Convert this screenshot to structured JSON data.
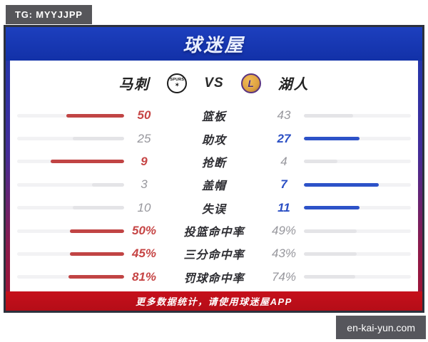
{
  "badges": {
    "top_left": {
      "label": "TG: MYYJJPP"
    },
    "bottom_right": {
      "label": "en-kai-yun.com"
    }
  },
  "header": {
    "title": "球迷屋"
  },
  "match": {
    "home_team": {
      "name": "马刺",
      "logo": "spurs-logo",
      "logo_text": "SPURS",
      "logo_mark": "✶"
    },
    "vs_label": "VS",
    "away_team": {
      "name": "湖人",
      "logo": "lakers-logo",
      "logo_mark": "L"
    }
  },
  "stats": {
    "rows": [
      {
        "label": "篮板",
        "left": "50",
        "right": "43",
        "left_pct": 54,
        "right_pct": 46,
        "left_highlight": true,
        "right_highlight": false
      },
      {
        "label": "助攻",
        "left": "25",
        "right": "27",
        "left_pct": 48,
        "right_pct": 52,
        "left_highlight": false,
        "right_highlight": true
      },
      {
        "label": "抢断",
        "left": "9",
        "right": "4",
        "left_pct": 69,
        "right_pct": 31,
        "left_highlight": true,
        "right_highlight": false
      },
      {
        "label": "盖帽",
        "left": "3",
        "right": "7",
        "left_pct": 30,
        "right_pct": 70,
        "left_highlight": false,
        "right_highlight": true
      },
      {
        "label": "失误",
        "left": "10",
        "right": "11",
        "left_pct": 48,
        "right_pct": 52,
        "left_highlight": false,
        "right_highlight": true
      },
      {
        "label": "投篮命中率",
        "left": "50%",
        "right": "49%",
        "left_pct": 51,
        "right_pct": 49,
        "left_highlight": true,
        "right_highlight": false
      },
      {
        "label": "三分命中率",
        "left": "45%",
        "right": "43%",
        "left_pct": 51,
        "right_pct": 49,
        "left_highlight": true,
        "right_highlight": false
      },
      {
        "label": "罚球命中率",
        "left": "81%",
        "right": "74%",
        "left_pct": 52,
        "right_pct": 48,
        "left_highlight": true,
        "right_highlight": false
      }
    ]
  },
  "footer": {
    "text": "更多数据统计，请使用球迷屋APP"
  },
  "colors": {
    "header_blue": "#1737b4",
    "banner_red": "#c1101c",
    "home_accent": "#c14444",
    "away_accent": "#2d52c8",
    "track_gray": "#f2f2f4",
    "muted_fill": "#e4e4e7",
    "badge_gray": "#56565a"
  },
  "chart_data": {
    "type": "bar",
    "title": "马刺 VS 湖人 数据统计",
    "categories": [
      "篮板",
      "助攻",
      "抢断",
      "盖帽",
      "失误",
      "投篮命中率",
      "三分命中率",
      "罚球命中率"
    ],
    "series": [
      {
        "name": "马刺",
        "values": [
          50,
          25,
          9,
          3,
          10,
          50,
          45,
          81
        ]
      },
      {
        "name": "湖人",
        "values": [
          43,
          27,
          4,
          7,
          11,
          49,
          43,
          74
        ]
      }
    ],
    "units": [
      "",
      "",
      "",
      "",
      "",
      "%",
      "%",
      "%"
    ],
    "legend_position": "none",
    "layout": "diverging paired bars, fill length proportional to value share of row total"
  }
}
